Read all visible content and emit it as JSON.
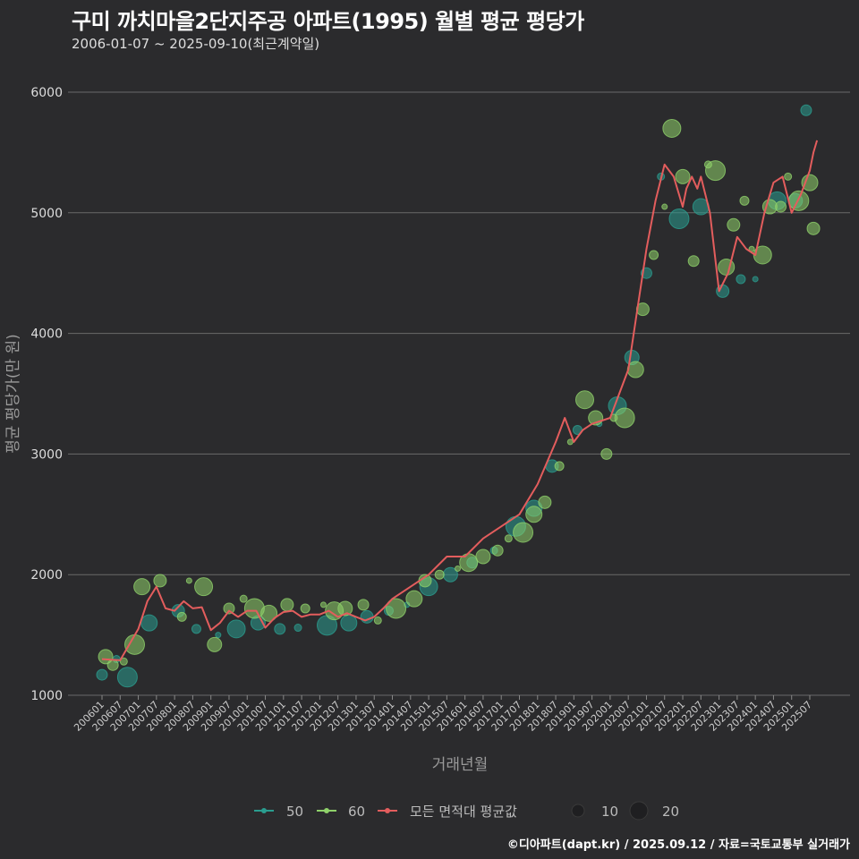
{
  "header": {
    "title": "구미 까치마을2단지주공 아파트(1995) 월별 평균 평당가",
    "subtitle": "2006-01-07 ~ 2025-09-10(최근계약일)"
  },
  "footer": {
    "credit": "©디아파트(dapt.kr) / 2025.09.12 / 자료=국토교통부 실거래가"
  },
  "colors": {
    "background": "#2b2b2d",
    "grid": "#6a6a6a",
    "series_50": "#2a9d8f",
    "series_60": "#8fd16a",
    "avg_line": "#e35d5d"
  },
  "chart_data": {
    "type": "scatter",
    "title": "구미 까치마을2단지주공 아파트(1995) 월별 평균 평당가",
    "xlabel": "거래년월",
    "ylabel": "평균 평당가(만 원)",
    "ylim": [
      900,
      6250
    ],
    "yticks": [
      1000,
      2000,
      3000,
      4000,
      5000,
      6000
    ],
    "xtick_labels": [
      "200601",
      "200607",
      "200701",
      "200707",
      "200801",
      "200807",
      "200901",
      "200907",
      "201001",
      "201007",
      "201101",
      "201107",
      "201201",
      "201207",
      "201301",
      "201307",
      "201401",
      "201407",
      "201501",
      "201507",
      "201601",
      "201607",
      "201701",
      "201707",
      "201801",
      "201807",
      "201901",
      "201907",
      "202001",
      "202007",
      "202101",
      "202107",
      "202201",
      "202207",
      "202301",
      "202307",
      "202401",
      "202407",
      "202501",
      "202507"
    ],
    "legend": {
      "area_50": "50",
      "area_60": "60",
      "avg_label": "모든 면적대 평균값",
      "size_10": "10",
      "size_20": "20"
    },
    "avg_line": {
      "name": "모든 면적대 평균값",
      "x": [
        2006.0,
        2006.5,
        2007.0,
        2007.25,
        2007.5,
        2007.75,
        2008.0,
        2008.25,
        2008.5,
        2008.75,
        2009.0,
        2009.25,
        2009.5,
        2009.75,
        2010.0,
        2010.25,
        2010.5,
        2010.75,
        2011.0,
        2011.25,
        2011.5,
        2011.75,
        2012.0,
        2012.25,
        2012.5,
        2012.75,
        2013.0,
        2013.25,
        2013.5,
        2013.75,
        2014.0,
        2014.5,
        2015.0,
        2015.5,
        2016.0,
        2016.5,
        2017.0,
        2017.5,
        2018.0,
        2018.5,
        2018.75,
        2019.0,
        2019.25,
        2019.5,
        2020.0,
        2020.5,
        2020.75,
        2021.0,
        2021.25,
        2021.5,
        2021.75,
        2022.0,
        2022.1,
        2022.25,
        2022.4,
        2022.5,
        2022.75,
        2023.0,
        2023.25,
        2023.5,
        2023.75,
        2024.0,
        2024.25,
        2024.5,
        2024.75,
        2025.0,
        2025.25,
        2025.5,
        2025.6,
        2025.7
      ],
      "y": [
        1300,
        1290,
        1550,
        1780,
        1900,
        1720,
        1700,
        1780,
        1720,
        1730,
        1540,
        1600,
        1700,
        1650,
        1700,
        1700,
        1560,
        1640,
        1690,
        1700,
        1650,
        1670,
        1670,
        1700,
        1650,
        1680,
        1650,
        1620,
        1650,
        1720,
        1800,
        1900,
        2000,
        2150,
        2150,
        2300,
        2400,
        2500,
        2750,
        3100,
        3300,
        3100,
        3200,
        3250,
        3300,
        3700,
        4200,
        4700,
        5100,
        5400,
        5300,
        5050,
        5200,
        5300,
        5200,
        5300,
        5000,
        4350,
        4500,
        4800,
        4700,
        4650,
        5000,
        5250,
        5300,
        5000,
        5150,
        5350,
        5500,
        5600
      ]
    },
    "series": [
      {
        "name": "50",
        "x": [
          2006.0,
          2006.4,
          2006.7,
          2007.3,
          2008.1,
          2008.6,
          2009.2,
          2009.7,
          2010.3,
          2010.9,
          2011.4,
          2012.2,
          2012.8,
          2013.3,
          2013.9,
          2014.4,
          2015.0,
          2015.6,
          2016.2,
          2016.8,
          2017.4,
          2017.9,
          2018.4,
          2019.1,
          2019.7,
          2020.2,
          2020.6,
          2021.0,
          2021.4,
          2021.9,
          2022.5,
          2023.1,
          2023.6,
          2024.0,
          2024.6,
          2025.1,
          2025.4
        ],
        "y": [
          1170,
          1300,
          1150,
          1600,
          1700,
          1550,
          1500,
          1550,
          1600,
          1550,
          1560,
          1580,
          1600,
          1650,
          1700,
          1750,
          1900,
          2000,
          2100,
          2200,
          2400,
          2550,
          2900,
          3200,
          3250,
          3400,
          3800,
          4500,
          5300,
          4950,
          5050,
          4350,
          4450,
          4450,
          5100,
          5100,
          5850
        ]
      },
      {
        "name": "60",
        "x": [
          2006.1,
          2006.3,
          2006.6,
          2006.9,
          2007.1,
          2007.6,
          2008.2,
          2008.4,
          2008.8,
          2009.1,
          2009.5,
          2009.9,
          2010.2,
          2010.6,
          2011.1,
          2011.6,
          2012.1,
          2012.4,
          2012.7,
          2013.2,
          2013.6,
          2014.1,
          2014.6,
          2014.9,
          2015.3,
          2015.8,
          2016.1,
          2016.5,
          2016.9,
          2017.2,
          2017.6,
          2017.9,
          2018.2,
          2018.6,
          2018.9,
          2019.3,
          2019.6,
          2019.9,
          2020.1,
          2020.4,
          2020.7,
          2020.9,
          2021.2,
          2021.5,
          2021.7,
          2022.0,
          2022.3,
          2022.7,
          2022.9,
          2023.2,
          2023.4,
          2023.7,
          2023.9,
          2024.2,
          2024.4,
          2024.7,
          2024.9,
          2025.2,
          2025.5,
          2025.6
        ],
        "y": [
          1320,
          1250,
          1280,
          1420,
          1900,
          1950,
          1650,
          1950,
          1900,
          1420,
          1720,
          1800,
          1720,
          1680,
          1750,
          1720,
          1750,
          1700,
          1720,
          1750,
          1620,
          1720,
          1800,
          1950,
          2000,
          2050,
          2100,
          2150,
          2200,
          2300,
          2350,
          2500,
          2600,
          2900,
          3100,
          3450,
          3300,
          3000,
          3300,
          3300,
          3700,
          4200,
          4650,
          5050,
          5700,
          5300,
          4600,
          5400,
          5350,
          4550,
          4900,
          5100,
          4700,
          4650,
          5050,
          5050,
          5300,
          5100,
          5250,
          4870
        ]
      }
    ]
  }
}
